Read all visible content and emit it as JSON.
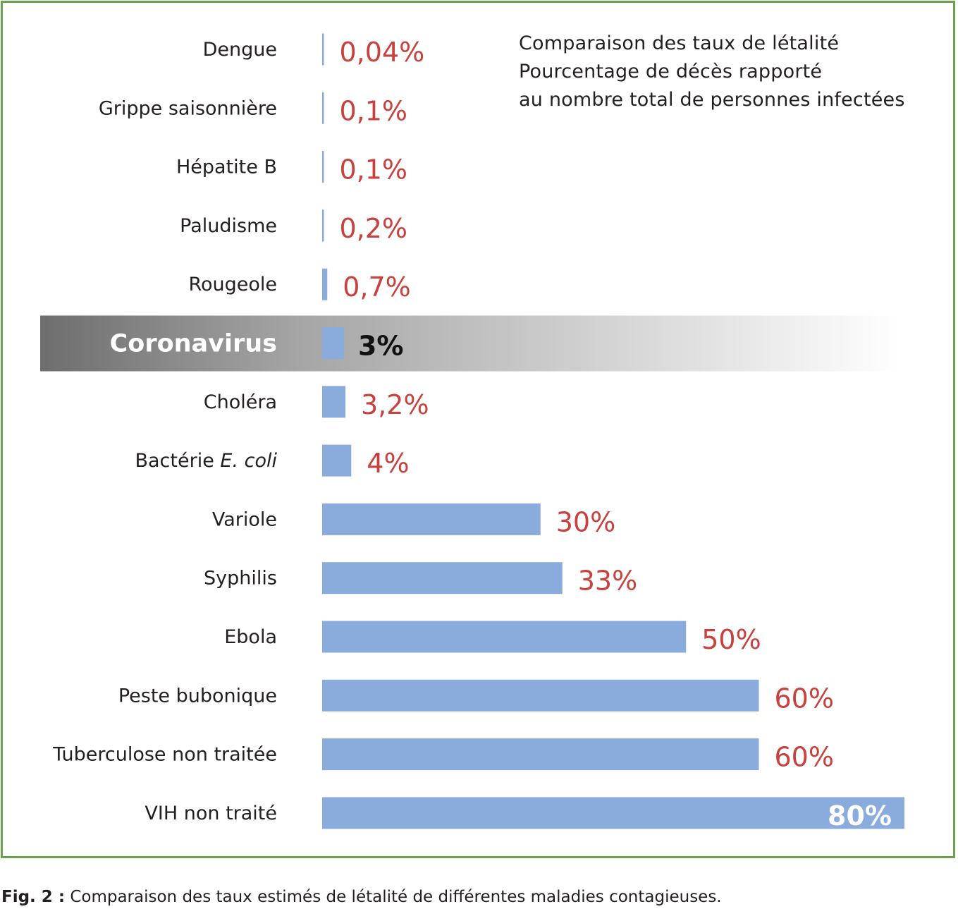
{
  "chart_data": {
    "type": "bar",
    "orientation": "horizontal",
    "title_lines": [
      "Comparaison des taux de létalité",
      "Pourcentage de décès rapporté",
      "au nombre total de personnes infectées"
    ],
    "categories": [
      "Dengue",
      "Grippe saisonnière",
      "Hépatite B",
      "Paludisme",
      "Rougeole",
      "Coronavirus",
      "Choléra",
      "Bactérie E. coli",
      "Variole",
      "Syphilis",
      "Ebola",
      "Peste bubonique",
      "Tuberculose non traitée",
      "VIH non traité"
    ],
    "values": [
      0.04,
      0.1,
      0.1,
      0.2,
      0.7,
      3,
      3.2,
      4,
      30,
      33,
      50,
      60,
      60,
      80
    ],
    "value_labels": [
      "0,04%",
      "0,1%",
      "0,1%",
      "0,2%",
      "0,7%",
      "3%",
      "3,2%",
      "4%",
      "30%",
      "33%",
      "50%",
      "60%",
      "60%",
      "80%"
    ],
    "highlight": "Coronavirus",
    "bar_color": "#8aacdc",
    "value_color": "#c8413c",
    "frame_color": "#6ba04e",
    "xlim": [
      0,
      80
    ]
  },
  "caption": {
    "prefix": "Fig. 2 :",
    "text": " Comparaison des taux estimés de létalité de différentes maladies contagieuses."
  }
}
